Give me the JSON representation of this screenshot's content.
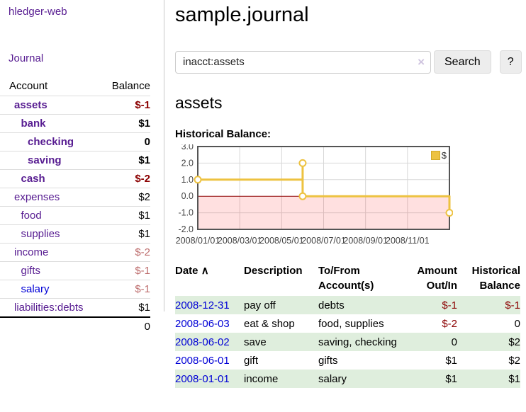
{
  "app": {
    "title": "hledger-web",
    "nav_journal": "Journal"
  },
  "sidebar": {
    "table_headers": {
      "account": "Account",
      "balance": "Balance"
    },
    "accounts": [
      {
        "name": "assets",
        "depth": 0,
        "bold": true,
        "link": "purple",
        "balance": "$-1",
        "balance_class": "neg bold"
      },
      {
        "name": "bank",
        "depth": 1,
        "bold": true,
        "link": "purple",
        "balance": "$1",
        "balance_class": "bold"
      },
      {
        "name": "checking",
        "depth": 2,
        "bold": true,
        "link": "purple",
        "balance": "0",
        "balance_class": "bold"
      },
      {
        "name": "saving",
        "depth": 2,
        "bold": true,
        "link": "purple",
        "balance": "$1",
        "balance_class": "bold"
      },
      {
        "name": "cash",
        "depth": 1,
        "bold": true,
        "link": "purple",
        "balance": "$-2",
        "balance_class": "neg bold"
      },
      {
        "name": "expenses",
        "depth": 0,
        "bold": false,
        "link": "purple",
        "balance": "$2",
        "balance_class": ""
      },
      {
        "name": "food",
        "depth": 1,
        "bold": false,
        "link": "purple",
        "balance": "$1",
        "balance_class": ""
      },
      {
        "name": "supplies",
        "depth": 1,
        "bold": false,
        "link": "purple",
        "balance": "$1",
        "balance_class": ""
      },
      {
        "name": "income",
        "depth": 0,
        "bold": false,
        "link": "purple",
        "balance": "$-2",
        "balance_class": "rose"
      },
      {
        "name": "gifts",
        "depth": 1,
        "bold": false,
        "link": "purple",
        "balance": "$-1",
        "balance_class": "rose"
      },
      {
        "name": "salary",
        "depth": 1,
        "bold": false,
        "link": "blue",
        "balance": "$-1",
        "balance_class": "rose"
      },
      {
        "name": "liabilities:debts",
        "depth": 0,
        "bold": false,
        "link": "purple",
        "balance": "$1",
        "balance_class": ""
      }
    ],
    "total": "0"
  },
  "main": {
    "title": "sample.journal",
    "search": {
      "value": "inacct:assets",
      "clear_icon": "×",
      "button": "Search",
      "help_button": "?"
    },
    "account_heading": "assets",
    "chart_label": "Historical Balance:"
  },
  "chart_data": {
    "type": "line",
    "title": "Historical Balance",
    "xlabel": "",
    "ylabel": "",
    "xlim": [
      0,
      12
    ],
    "ylim": [
      -2,
      3
    ],
    "grid": true,
    "legend_position": "top-right",
    "x_ticks": [
      {
        "x": 0,
        "label": "2008/01/01"
      },
      {
        "x": 2,
        "label": "2008/03/01"
      },
      {
        "x": 4,
        "label": "2008/05/01"
      },
      {
        "x": 6,
        "label": "2008/07/01"
      },
      {
        "x": 8,
        "label": "2008/09/01"
      },
      {
        "x": 10,
        "label": "2008/11/01"
      }
    ],
    "y_ticks": [
      {
        "v": 3,
        "label": "3.0"
      },
      {
        "v": 2,
        "label": "2.0"
      },
      {
        "v": 1,
        "label": "1.0"
      },
      {
        "v": 0,
        "label": "0.0"
      },
      {
        "v": -1,
        "label": "-1.0"
      },
      {
        "v": -2,
        "label": "-2.0"
      }
    ],
    "series": [
      {
        "name": "$",
        "color": "#edc240",
        "points": [
          [
            0,
            1
          ],
          [
            5,
            1
          ],
          [
            5,
            2
          ],
          [
            5,
            0
          ],
          [
            12,
            0
          ],
          [
            12,
            -1
          ]
        ],
        "markers": [
          [
            0,
            1
          ],
          [
            5,
            2
          ],
          [
            5,
            0
          ],
          [
            12,
            -1
          ]
        ]
      }
    ],
    "zero_line_color": "#8b0000",
    "negative_region_fill": "rgba(255,0,0,0.12)",
    "grid_color": "#d8d8d8",
    "border_color": "#545454"
  },
  "register": {
    "sort_icon": "∧",
    "columns": [
      "Date",
      "Description",
      "To/From Account(s)",
      "Amount Out/In",
      "Historical Balance"
    ],
    "rows": [
      {
        "date": "2008-12-31",
        "description": "pay off",
        "accounts": "debts",
        "amount": "$-1",
        "amount_class": "neg",
        "balance": "$-1",
        "balance_class": "neg"
      },
      {
        "date": "2008-06-03",
        "description": "eat & shop",
        "accounts": "food, supplies",
        "amount": "$-2",
        "amount_class": "neg",
        "balance": "0",
        "balance_class": ""
      },
      {
        "date": "2008-06-02",
        "description": "save",
        "accounts": "saving, checking",
        "amount": "0",
        "amount_class": "",
        "balance": "$2",
        "balance_class": ""
      },
      {
        "date": "2008-06-01",
        "description": "gift",
        "accounts": "gifts",
        "amount": "$1",
        "amount_class": "",
        "balance": "$2",
        "balance_class": ""
      },
      {
        "date": "2008-01-01",
        "description": "income",
        "accounts": "salary",
        "amount": "$1",
        "amount_class": "",
        "balance": "$1",
        "balance_class": ""
      }
    ]
  },
  "colors": {
    "link_purple": "#571c91",
    "link_blue": "#0000d6",
    "negative_strong": "#8b0000",
    "negative_soft": "#bd6c6c",
    "row_stripe_green": "#dfeedd",
    "chart_line_gold": "#edc240"
  }
}
